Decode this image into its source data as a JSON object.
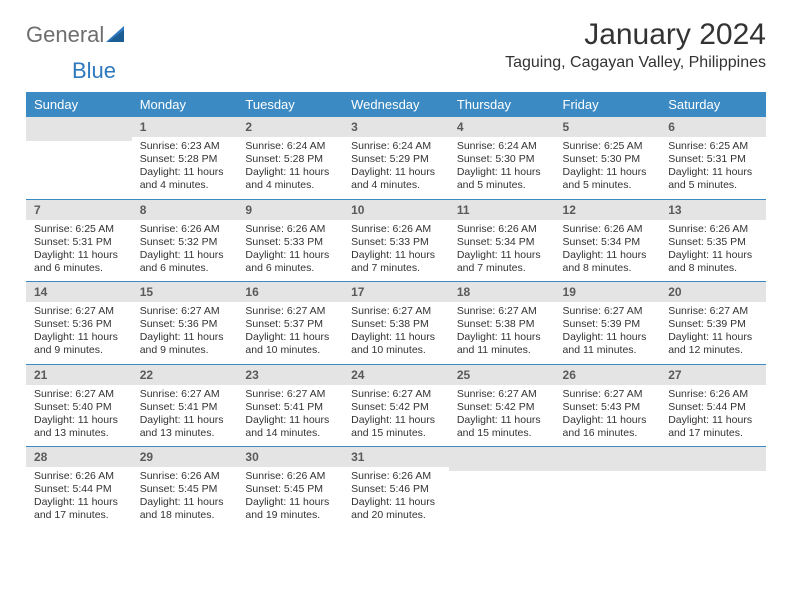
{
  "brand": {
    "part1": "General",
    "part2": "Blue"
  },
  "title": "January 2024",
  "location": "Taguing, Cagayan Valley, Philippines",
  "colors": {
    "header_bg": "#3b8ac4",
    "header_text": "#ffffff",
    "daynum_bg": "#e4e4e4",
    "daynum_text": "#5a5a5a",
    "divider": "#3b8ac4",
    "body_text": "#333333",
    "brand_gray": "#6e6e6e",
    "brand_blue": "#2f78bd",
    "background": "#ffffff"
  },
  "typography": {
    "title_fontsize": 30,
    "location_fontsize": 16,
    "header_fontsize": 13,
    "daynum_fontsize": 12,
    "body_fontsize": 10.5
  },
  "weekdays": [
    "Sunday",
    "Monday",
    "Tuesday",
    "Wednesday",
    "Thursday",
    "Friday",
    "Saturday"
  ],
  "weeks": [
    [
      null,
      {
        "day": "1",
        "sunrise": "Sunrise: 6:23 AM",
        "sunset": "Sunset: 5:28 PM",
        "daylight": "Daylight: 11 hours and 4 minutes."
      },
      {
        "day": "2",
        "sunrise": "Sunrise: 6:24 AM",
        "sunset": "Sunset: 5:28 PM",
        "daylight": "Daylight: 11 hours and 4 minutes."
      },
      {
        "day": "3",
        "sunrise": "Sunrise: 6:24 AM",
        "sunset": "Sunset: 5:29 PM",
        "daylight": "Daylight: 11 hours and 4 minutes."
      },
      {
        "day": "4",
        "sunrise": "Sunrise: 6:24 AM",
        "sunset": "Sunset: 5:30 PM",
        "daylight": "Daylight: 11 hours and 5 minutes."
      },
      {
        "day": "5",
        "sunrise": "Sunrise: 6:25 AM",
        "sunset": "Sunset: 5:30 PM",
        "daylight": "Daylight: 11 hours and 5 minutes."
      },
      {
        "day": "6",
        "sunrise": "Sunrise: 6:25 AM",
        "sunset": "Sunset: 5:31 PM",
        "daylight": "Daylight: 11 hours and 5 minutes."
      }
    ],
    [
      {
        "day": "7",
        "sunrise": "Sunrise: 6:25 AM",
        "sunset": "Sunset: 5:31 PM",
        "daylight": "Daylight: 11 hours and 6 minutes."
      },
      {
        "day": "8",
        "sunrise": "Sunrise: 6:26 AM",
        "sunset": "Sunset: 5:32 PM",
        "daylight": "Daylight: 11 hours and 6 minutes."
      },
      {
        "day": "9",
        "sunrise": "Sunrise: 6:26 AM",
        "sunset": "Sunset: 5:33 PM",
        "daylight": "Daylight: 11 hours and 6 minutes."
      },
      {
        "day": "10",
        "sunrise": "Sunrise: 6:26 AM",
        "sunset": "Sunset: 5:33 PM",
        "daylight": "Daylight: 11 hours and 7 minutes."
      },
      {
        "day": "11",
        "sunrise": "Sunrise: 6:26 AM",
        "sunset": "Sunset: 5:34 PM",
        "daylight": "Daylight: 11 hours and 7 minutes."
      },
      {
        "day": "12",
        "sunrise": "Sunrise: 6:26 AM",
        "sunset": "Sunset: 5:34 PM",
        "daylight": "Daylight: 11 hours and 8 minutes."
      },
      {
        "day": "13",
        "sunrise": "Sunrise: 6:26 AM",
        "sunset": "Sunset: 5:35 PM",
        "daylight": "Daylight: 11 hours and 8 minutes."
      }
    ],
    [
      {
        "day": "14",
        "sunrise": "Sunrise: 6:27 AM",
        "sunset": "Sunset: 5:36 PM",
        "daylight": "Daylight: 11 hours and 9 minutes."
      },
      {
        "day": "15",
        "sunrise": "Sunrise: 6:27 AM",
        "sunset": "Sunset: 5:36 PM",
        "daylight": "Daylight: 11 hours and 9 minutes."
      },
      {
        "day": "16",
        "sunrise": "Sunrise: 6:27 AM",
        "sunset": "Sunset: 5:37 PM",
        "daylight": "Daylight: 11 hours and 10 minutes."
      },
      {
        "day": "17",
        "sunrise": "Sunrise: 6:27 AM",
        "sunset": "Sunset: 5:38 PM",
        "daylight": "Daylight: 11 hours and 10 minutes."
      },
      {
        "day": "18",
        "sunrise": "Sunrise: 6:27 AM",
        "sunset": "Sunset: 5:38 PM",
        "daylight": "Daylight: 11 hours and 11 minutes."
      },
      {
        "day": "19",
        "sunrise": "Sunrise: 6:27 AM",
        "sunset": "Sunset: 5:39 PM",
        "daylight": "Daylight: 11 hours and 11 minutes."
      },
      {
        "day": "20",
        "sunrise": "Sunrise: 6:27 AM",
        "sunset": "Sunset: 5:39 PM",
        "daylight": "Daylight: 11 hours and 12 minutes."
      }
    ],
    [
      {
        "day": "21",
        "sunrise": "Sunrise: 6:27 AM",
        "sunset": "Sunset: 5:40 PM",
        "daylight": "Daylight: 11 hours and 13 minutes."
      },
      {
        "day": "22",
        "sunrise": "Sunrise: 6:27 AM",
        "sunset": "Sunset: 5:41 PM",
        "daylight": "Daylight: 11 hours and 13 minutes."
      },
      {
        "day": "23",
        "sunrise": "Sunrise: 6:27 AM",
        "sunset": "Sunset: 5:41 PM",
        "daylight": "Daylight: 11 hours and 14 minutes."
      },
      {
        "day": "24",
        "sunrise": "Sunrise: 6:27 AM",
        "sunset": "Sunset: 5:42 PM",
        "daylight": "Daylight: 11 hours and 15 minutes."
      },
      {
        "day": "25",
        "sunrise": "Sunrise: 6:27 AM",
        "sunset": "Sunset: 5:42 PM",
        "daylight": "Daylight: 11 hours and 15 minutes."
      },
      {
        "day": "26",
        "sunrise": "Sunrise: 6:27 AM",
        "sunset": "Sunset: 5:43 PM",
        "daylight": "Daylight: 11 hours and 16 minutes."
      },
      {
        "day": "27",
        "sunrise": "Sunrise: 6:26 AM",
        "sunset": "Sunset: 5:44 PM",
        "daylight": "Daylight: 11 hours and 17 minutes."
      }
    ],
    [
      {
        "day": "28",
        "sunrise": "Sunrise: 6:26 AM",
        "sunset": "Sunset: 5:44 PM",
        "daylight": "Daylight: 11 hours and 17 minutes."
      },
      {
        "day": "29",
        "sunrise": "Sunrise: 6:26 AM",
        "sunset": "Sunset: 5:45 PM",
        "daylight": "Daylight: 11 hours and 18 minutes."
      },
      {
        "day": "30",
        "sunrise": "Sunrise: 6:26 AM",
        "sunset": "Sunset: 5:45 PM",
        "daylight": "Daylight: 11 hours and 19 minutes."
      },
      {
        "day": "31",
        "sunrise": "Sunrise: 6:26 AM",
        "sunset": "Sunset: 5:46 PM",
        "daylight": "Daylight: 11 hours and 20 minutes."
      },
      null,
      null,
      null
    ]
  ]
}
